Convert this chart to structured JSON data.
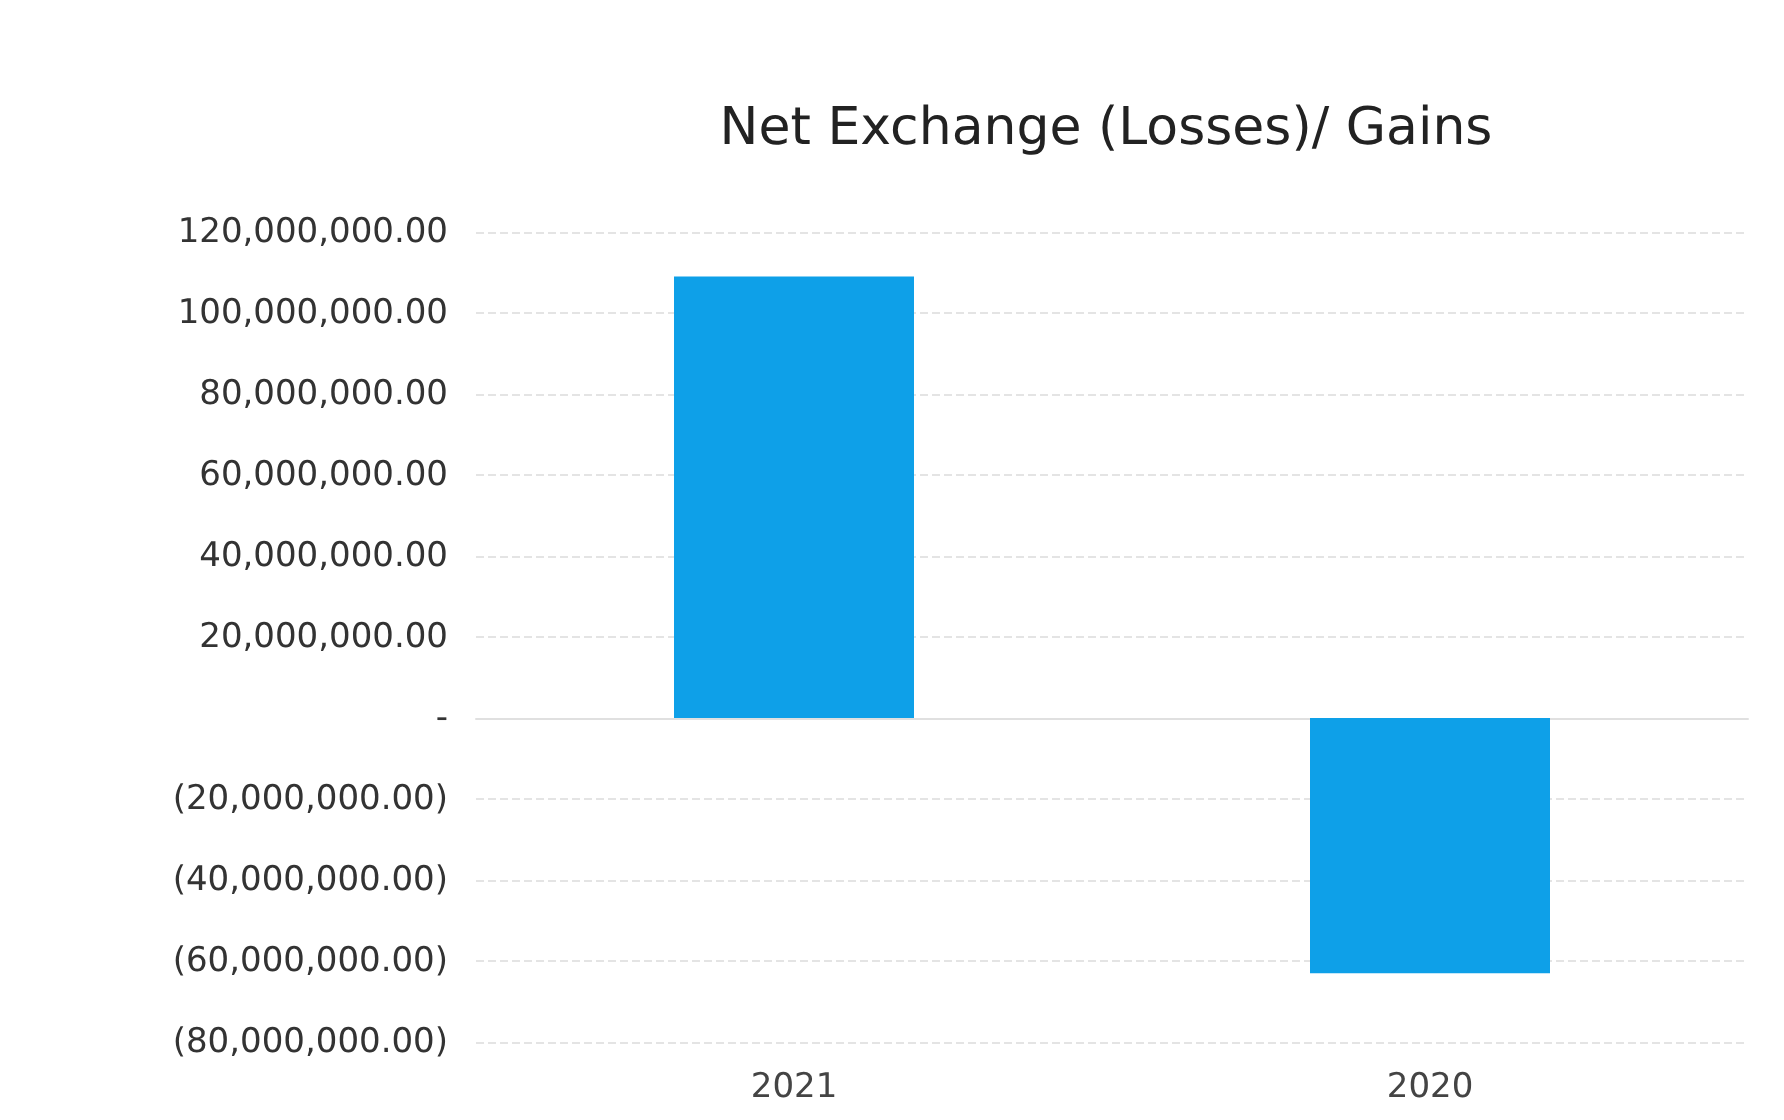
{
  "chart_data": {
    "type": "bar",
    "title": "Net Exchange (Losses)/ Gains",
    "categories": [
      "2021",
      "2020"
    ],
    "values": [
      109000000,
      -63000000
    ],
    "color": "#0ea0e8",
    "ylim": [
      -80000000,
      120000000
    ],
    "yticks": [
      {
        "value": -80000000,
        "label": "(80,000,000.00)"
      },
      {
        "value": -60000000,
        "label": "(60,000,000.00)"
      },
      {
        "value": -40000000,
        "label": "(40,000,000.00)"
      },
      {
        "value": -20000000,
        "label": "(20,000,000.00)"
      },
      {
        "value": 0,
        "label": "-"
      },
      {
        "value": 20000000,
        "label": "20,000,000.00"
      },
      {
        "value": 40000000,
        "label": "40,000,000.00"
      },
      {
        "value": 60000000,
        "label": "60,000,000.00"
      },
      {
        "value": 80000000,
        "label": "80,000,000.00"
      },
      {
        "value": 100000000,
        "label": "100,000,000.00"
      },
      {
        "value": 120000000,
        "label": "120,000,000.00"
      }
    ],
    "grid": "y"
  }
}
